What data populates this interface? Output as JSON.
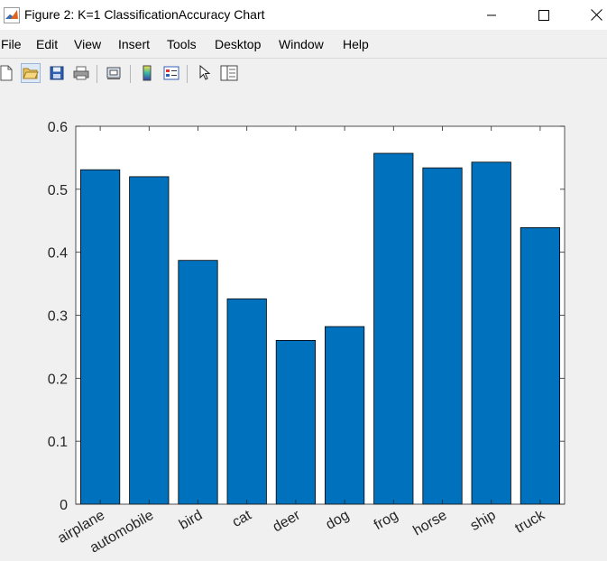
{
  "window": {
    "title": "Figure 2: K=1 ClassificationAccuracy Chart",
    "minimize_glyph": "─",
    "maximize_glyph": "☐",
    "close_glyph": "✕"
  },
  "menu": [
    "File",
    "Edit",
    "View",
    "Insert",
    "Tools",
    "Desktop",
    "Window",
    "Help"
  ],
  "toolbar_icons": [
    "new-figure-icon",
    "open-file-icon",
    "save-icon",
    "print-icon",
    "link-plot-icon",
    "insert-colorbar-icon",
    "insert-legend-icon",
    "pointer-icon",
    "property-inspector-icon"
  ],
  "colors": {
    "bar_fill": "#0072bd",
    "bar_edge": "#000000",
    "axes_background": "#ffffff",
    "figure_background": "#f0f0f0",
    "tick_label": "#262626"
  },
  "chart_data": {
    "type": "bar",
    "categories": [
      "airplane",
      "automobile",
      "bird",
      "cat",
      "deer",
      "dog",
      "frog",
      "horse",
      "ship",
      "truck"
    ],
    "values": [
      0.531,
      0.52,
      0.387,
      0.326,
      0.26,
      0.282,
      0.557,
      0.534,
      0.543,
      0.439
    ],
    "ylim": [
      0,
      0.6
    ],
    "yticks": [
      0,
      0.1,
      0.2,
      0.3,
      0.4,
      0.5,
      0.6
    ],
    "ytick_labels": [
      "0",
      "0.1",
      "0.2",
      "0.3",
      "0.4",
      "0.5",
      "0.6"
    ],
    "title": "",
    "xlabel": "",
    "ylabel": "",
    "grid": false,
    "box": true
  }
}
